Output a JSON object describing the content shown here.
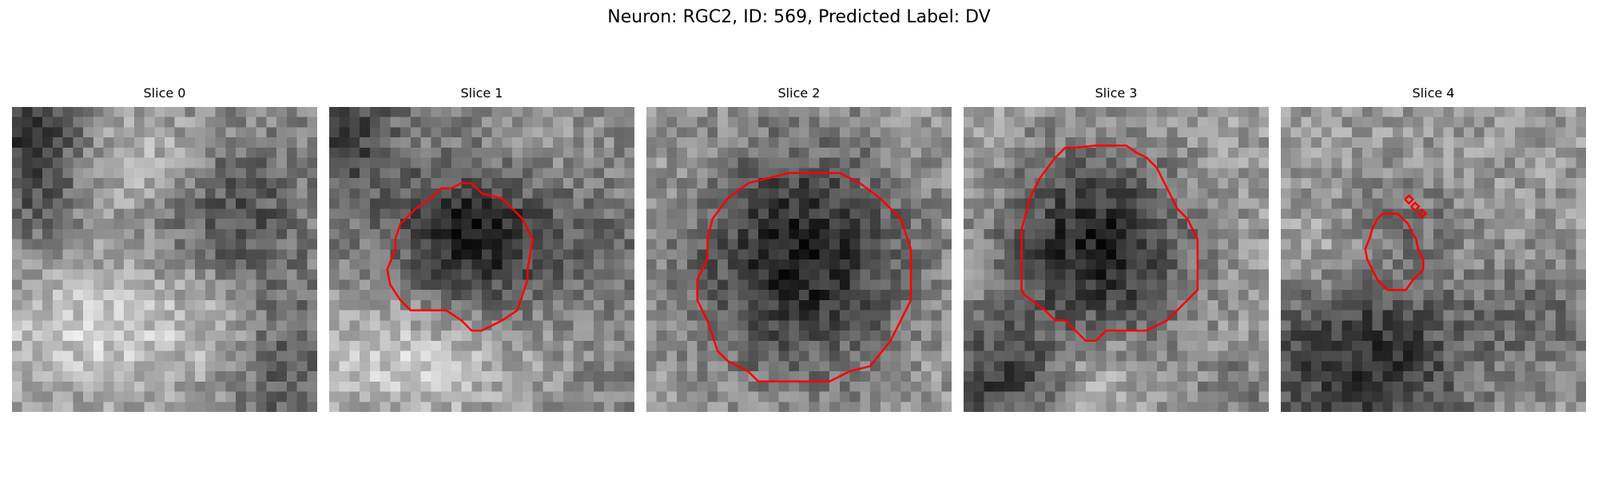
{
  "figure": {
    "title": "Neuron: RGC2, ID: 569, Predicted Label: DV",
    "contour_color": "#ff0000",
    "colormap": "grayscale"
  },
  "panels": [
    {
      "title": "Slice 0"
    },
    {
      "title": "Slice 1"
    },
    {
      "title": "Slice 2"
    },
    {
      "title": "Slice 3"
    },
    {
      "title": "Slice 4"
    }
  ]
}
